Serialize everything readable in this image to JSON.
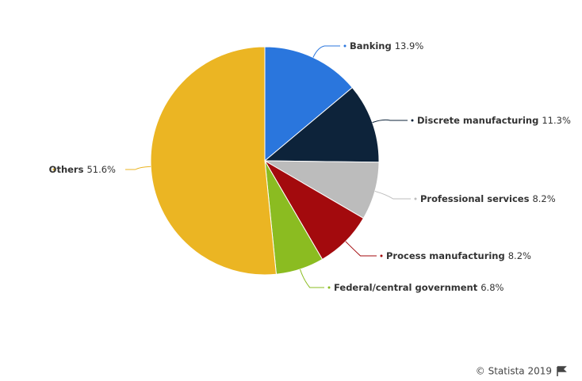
{
  "chart_data": {
    "type": "pie",
    "categories": [
      "Banking",
      "Discrete manufacturing",
      "Professional services",
      "Process manufacturing",
      "Federal/central government",
      "Others"
    ],
    "values": [
      13.9,
      11.3,
      8.2,
      8.2,
      6.8,
      51.6
    ],
    "value_labels": [
      "13.9%",
      "11.3%",
      "8.2%",
      "8.2%",
      "6.8%",
      "51.6%"
    ],
    "colors": [
      "#2a76dd",
      "#0d233a",
      "#bcbcbc",
      "#a30a0d",
      "#8bbc21",
      "#ebb523"
    ]
  },
  "credit": "© Statista 2019"
}
